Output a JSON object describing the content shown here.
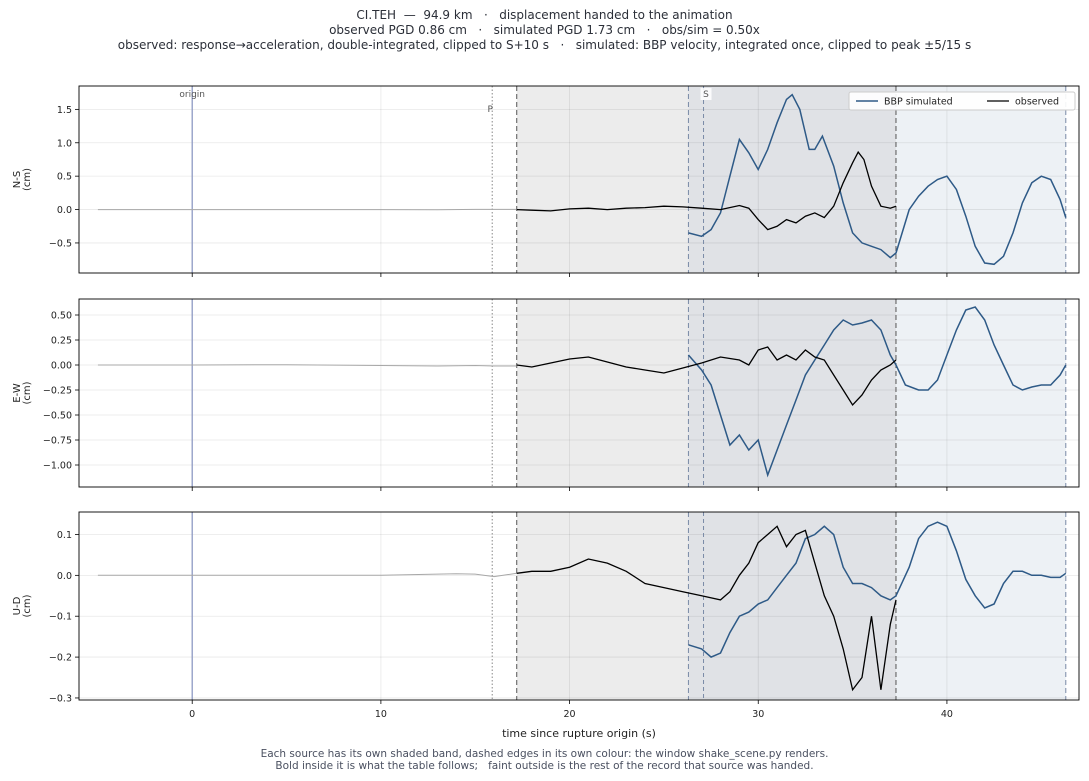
{
  "header": {
    "line1": "CI.TEH  —  94.9 km   ·   displacement handed to the animation",
    "line2": "observed PGD 0.86 cm   ·   simulated PGD 1.73 cm   ·   obs/sim = 0.50x",
    "line3": "observed: response→acceleration, double-integrated, clipped to S+10 s   ·   simulated: BBP velocity, integrated once, clipped to peak ±5/15 s"
  },
  "footer": {
    "line1": "Each source has its own shaded band, dashed edges in its own colour: the window shake_scene.py renders.",
    "line2": "Bold inside it is what the table follows;   faint outside is the rest of the record that source was handed."
  },
  "colors": {
    "simulated": "#2e5a87",
    "observed": "#000000",
    "faint": "#a8a8a8",
    "origin_line": "#8f9bc4",
    "obs_band": "#ececec",
    "sim_band": "#edf1f5",
    "overlap_band": "#e0e2e6",
    "obs_edge": "#555555",
    "sim_edge": "#7a8aa6"
  },
  "chart_data": {
    "type": "line",
    "xlabel": "time since rupture origin (s)",
    "xlim": [
      -6,
      47
    ],
    "xticks": [
      0,
      10,
      20,
      30,
      40
    ],
    "markers": [
      {
        "label": "origin",
        "t": 0.0,
        "style": "solid"
      },
      {
        "label": "P",
        "t": 15.9,
        "style": "dotted"
      },
      {
        "label": "S",
        "t": 27.1,
        "style": "dashed"
      }
    ],
    "windows": {
      "observed": [
        17.2,
        37.3
      ],
      "simulated": [
        26.3,
        46.3
      ]
    },
    "legend": {
      "position": "top-right",
      "entries": [
        "BBP simulated",
        "observed"
      ]
    },
    "panels": [
      {
        "ylabel": "N-S\n(cm)",
        "ylim": [
          -0.95,
          1.85
        ],
        "yticks": [
          -0.5,
          0.0,
          0.5,
          1.0,
          1.5
        ],
        "ytick_labels": [
          "−0.5",
          "0.0",
          "0.5",
          "1.0",
          "1.5"
        ],
        "observed_faint": [
          [
            -5,
            0
          ],
          [
            0,
            0
          ],
          [
            5,
            0
          ],
          [
            10,
            0
          ],
          [
            13,
            -0.003
          ],
          [
            15,
            0.002
          ],
          [
            16,
            0.003
          ],
          [
            17.2,
            0.002
          ]
        ],
        "observed": [
          [
            17.2,
            0
          ],
          [
            18,
            -0.01
          ],
          [
            19,
            -0.02
          ],
          [
            20,
            0.01
          ],
          [
            21,
            0.02
          ],
          [
            22,
            0
          ],
          [
            23,
            0.02
          ],
          [
            24,
            0.03
          ],
          [
            25,
            0.05
          ],
          [
            26,
            0.04
          ],
          [
            27,
            0.02
          ],
          [
            28,
            0
          ],
          [
            29,
            0.06
          ],
          [
            29.5,
            0.02
          ],
          [
            30,
            -0.15
          ],
          [
            30.5,
            -0.3
          ],
          [
            31,
            -0.25
          ],
          [
            31.5,
            -0.15
          ],
          [
            32,
            -0.2
          ],
          [
            32.5,
            -0.1
          ],
          [
            33,
            -0.05
          ],
          [
            33.5,
            -0.12
          ],
          [
            34,
            0.05
          ],
          [
            34.5,
            0.4
          ],
          [
            35,
            0.7
          ],
          [
            35.3,
            0.86
          ],
          [
            35.6,
            0.75
          ],
          [
            36,
            0.35
          ],
          [
            36.5,
            0.05
          ],
          [
            37,
            0.02
          ],
          [
            37.3,
            0.05
          ]
        ],
        "simulated": [
          [
            26.3,
            -0.35
          ],
          [
            27,
            -0.4
          ],
          [
            27.5,
            -0.3
          ],
          [
            28,
            -0.05
          ],
          [
            28.5,
            0.5
          ],
          [
            29,
            1.05
          ],
          [
            29.5,
            0.85
          ],
          [
            30,
            0.6
          ],
          [
            30.5,
            0.9
          ],
          [
            31,
            1.3
          ],
          [
            31.5,
            1.65
          ],
          [
            31.8,
            1.72
          ],
          [
            32.2,
            1.5
          ],
          [
            32.7,
            0.9
          ],
          [
            33,
            0.9
          ],
          [
            33.4,
            1.1
          ],
          [
            34,
            0.65
          ],
          [
            34.5,
            0.1
          ],
          [
            35,
            -0.35
          ],
          [
            35.5,
            -0.5
          ],
          [
            36,
            -0.55
          ],
          [
            36.5,
            -0.6
          ],
          [
            37,
            -0.72
          ],
          [
            37.3,
            -0.65
          ],
          [
            38,
            0
          ],
          [
            38.5,
            0.2
          ],
          [
            39,
            0.35
          ],
          [
            39.5,
            0.45
          ],
          [
            40,
            0.5
          ],
          [
            40.5,
            0.3
          ],
          [
            41,
            -0.1
          ],
          [
            41.5,
            -0.55
          ],
          [
            42,
            -0.8
          ],
          [
            42.5,
            -0.82
          ],
          [
            43,
            -0.7
          ],
          [
            43.5,
            -0.35
          ],
          [
            44,
            0.1
          ],
          [
            44.5,
            0.4
          ],
          [
            45,
            0.5
          ],
          [
            45.5,
            0.45
          ],
          [
            46,
            0.15
          ],
          [
            46.3,
            -0.12
          ]
        ]
      },
      {
        "ylabel": "E-W\n(cm)",
        "ylim": [
          -1.22,
          0.66
        ],
        "yticks": [
          -1.0,
          -0.75,
          -0.5,
          -0.25,
          0.0,
          0.25,
          0.5
        ],
        "ytick_labels": [
          "−1.00",
          "−0.75",
          "−0.50",
          "−0.25",
          "0.00",
          "0.25",
          "0.50"
        ],
        "observed_faint": [
          [
            -5,
            0
          ],
          [
            0,
            0
          ],
          [
            5,
            0.003
          ],
          [
            10,
            -0.005
          ],
          [
            13,
            -0.01
          ],
          [
            15,
            -0.005
          ],
          [
            16,
            -0.01
          ],
          [
            17.2,
            -0.01
          ]
        ],
        "observed": [
          [
            17.2,
            0
          ],
          [
            18,
            -0.02
          ],
          [
            19,
            0.02
          ],
          [
            20,
            0.06
          ],
          [
            21,
            0.08
          ],
          [
            22,
            0.03
          ],
          [
            23,
            -0.02
          ],
          [
            24,
            -0.05
          ],
          [
            25,
            -0.08
          ],
          [
            26,
            -0.03
          ],
          [
            27,
            0.02
          ],
          [
            28,
            0.08
          ],
          [
            29,
            0.05
          ],
          [
            29.5,
            0
          ],
          [
            30,
            0.15
          ],
          [
            30.5,
            0.18
          ],
          [
            31,
            0.05
          ],
          [
            31.5,
            0.1
          ],
          [
            32,
            0.05
          ],
          [
            32.5,
            0.15
          ],
          [
            33,
            0.08
          ],
          [
            33.5,
            0.05
          ],
          [
            34,
            -0.1
          ],
          [
            34.5,
            -0.25
          ],
          [
            35,
            -0.4
          ],
          [
            35.5,
            -0.3
          ],
          [
            36,
            -0.15
          ],
          [
            36.5,
            -0.05
          ],
          [
            37,
            0
          ],
          [
            37.3,
            0.05
          ]
        ],
        "simulated": [
          [
            26.3,
            0.1
          ],
          [
            27,
            -0.05
          ],
          [
            27.5,
            -0.2
          ],
          [
            28,
            -0.5
          ],
          [
            28.5,
            -0.8
          ],
          [
            29,
            -0.7
          ],
          [
            29.5,
            -0.85
          ],
          [
            30,
            -0.75
          ],
          [
            30.5,
            -1.1
          ],
          [
            31,
            -0.85
          ],
          [
            31.5,
            -0.6
          ],
          [
            32,
            -0.35
          ],
          [
            32.5,
            -0.1
          ],
          [
            33,
            0.05
          ],
          [
            33.5,
            0.2
          ],
          [
            34,
            0.35
          ],
          [
            34.5,
            0.45
          ],
          [
            35,
            0.4
          ],
          [
            35.5,
            0.42
          ],
          [
            36,
            0.45
          ],
          [
            36.5,
            0.35
          ],
          [
            37,
            0.1
          ],
          [
            37.3,
            0
          ],
          [
            37.8,
            -0.2
          ],
          [
            38.5,
            -0.25
          ],
          [
            39,
            -0.25
          ],
          [
            39.5,
            -0.15
          ],
          [
            40,
            0.1
          ],
          [
            40.5,
            0.35
          ],
          [
            41,
            0.55
          ],
          [
            41.5,
            0.58
          ],
          [
            42,
            0.45
          ],
          [
            42.5,
            0.2
          ],
          [
            43,
            0
          ],
          [
            43.5,
            -0.2
          ],
          [
            44,
            -0.25
          ],
          [
            44.5,
            -0.22
          ],
          [
            45,
            -0.2
          ],
          [
            45.5,
            -0.2
          ],
          [
            46,
            -0.1
          ],
          [
            46.3,
            0
          ]
        ]
      },
      {
        "ylabel": "U-D\n(cm)",
        "ylim": [
          -0.305,
          0.155
        ],
        "yticks": [
          -0.3,
          -0.2,
          -0.1,
          0.0,
          0.1
        ],
        "ytick_labels": [
          "−0.3",
          "−0.2",
          "−0.1",
          "0.0",
          "0.1"
        ],
        "observed_faint": [
          [
            -5,
            0
          ],
          [
            0,
            0
          ],
          [
            5,
            0
          ],
          [
            10,
            0
          ],
          [
            12,
            0.002
          ],
          [
            14,
            0.004
          ],
          [
            15,
            0.003
          ],
          [
            16,
            -0.003
          ],
          [
            17.2,
            0.005
          ]
        ],
        "observed": [
          [
            17.2,
            0.005
          ],
          [
            18,
            0.01
          ],
          [
            19,
            0.01
          ],
          [
            20,
            0.02
          ],
          [
            21,
            0.04
          ],
          [
            22,
            0.03
          ],
          [
            23,
            0.01
          ],
          [
            24,
            -0.02
          ],
          [
            25,
            -0.03
          ],
          [
            26,
            -0.04
          ],
          [
            27,
            -0.05
          ],
          [
            28,
            -0.06
          ],
          [
            28.5,
            -0.04
          ],
          [
            29,
            0
          ],
          [
            29.5,
            0.03
          ],
          [
            30,
            0.08
          ],
          [
            30.5,
            0.1
          ],
          [
            31,
            0.12
          ],
          [
            31.5,
            0.07
          ],
          [
            32,
            0.1
          ],
          [
            32.5,
            0.11
          ],
          [
            33,
            0.03
          ],
          [
            33.5,
            -0.05
          ],
          [
            34,
            -0.1
          ],
          [
            34.5,
            -0.18
          ],
          [
            35,
            -0.28
          ],
          [
            35.5,
            -0.25
          ],
          [
            36,
            -0.1
          ],
          [
            36.5,
            -0.28
          ],
          [
            37,
            -0.12
          ],
          [
            37.3,
            -0.06
          ]
        ],
        "simulated": [
          [
            26.3,
            -0.17
          ],
          [
            27,
            -0.18
          ],
          [
            27.5,
            -0.2
          ],
          [
            28,
            -0.19
          ],
          [
            28.5,
            -0.14
          ],
          [
            29,
            -0.1
          ],
          [
            29.5,
            -0.09
          ],
          [
            30,
            -0.07
          ],
          [
            30.5,
            -0.06
          ],
          [
            31,
            -0.03
          ],
          [
            31.5,
            0
          ],
          [
            32,
            0.03
          ],
          [
            32.5,
            0.09
          ],
          [
            33,
            0.1
          ],
          [
            33.5,
            0.12
          ],
          [
            34,
            0.1
          ],
          [
            34.5,
            0.02
          ],
          [
            35,
            -0.02
          ],
          [
            35.5,
            -0.02
          ],
          [
            36,
            -0.03
          ],
          [
            36.5,
            -0.05
          ],
          [
            37,
            -0.06
          ],
          [
            37.3,
            -0.05
          ],
          [
            38,
            0.02
          ],
          [
            38.5,
            0.09
          ],
          [
            39,
            0.12
          ],
          [
            39.5,
            0.13
          ],
          [
            40,
            0.12
          ],
          [
            40.5,
            0.06
          ],
          [
            41,
            -0.01
          ],
          [
            41.5,
            -0.05
          ],
          [
            42,
            -0.08
          ],
          [
            42.5,
            -0.07
          ],
          [
            43,
            -0.02
          ],
          [
            43.5,
            0.01
          ],
          [
            44,
            0.01
          ],
          [
            44.5,
            0
          ],
          [
            45,
            0
          ],
          [
            45.5,
            -0.005
          ],
          [
            46,
            -0.005
          ],
          [
            46.3,
            0.005
          ]
        ]
      }
    ]
  }
}
